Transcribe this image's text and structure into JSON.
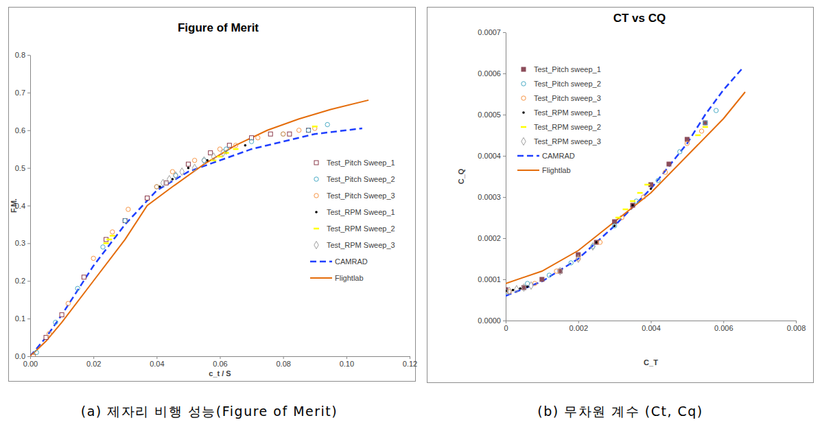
{
  "chart_data": [
    {
      "type": "scatter",
      "title": "Figure of Merit",
      "x_label": "c_t / S",
      "y_label": "F.M.",
      "caption": "(a) 제자리 비행 성능(Figure of Merit)",
      "xlim": [
        0,
        0.12
      ],
      "xticks": [
        {
          "value": 0,
          "label": "0.00"
        },
        {
          "value": 0.02,
          "label": "0.02"
        },
        {
          "value": 0.04,
          "label": "0.04"
        },
        {
          "value": 0.06,
          "label": "0.06"
        },
        {
          "value": 0.08,
          "label": "0.08"
        },
        {
          "value": 0.1,
          "label": "0.10"
        },
        {
          "value": 0.12,
          "label": "0.12"
        }
      ],
      "ylim": [
        0,
        0.8
      ],
      "yticks": [
        {
          "value": 0,
          "label": "0.0"
        },
        {
          "value": 0.1,
          "label": "0.1"
        },
        {
          "value": 0.2,
          "label": "0.2"
        },
        {
          "value": 0.3,
          "label": "0.3"
        },
        {
          "value": 0.4,
          "label": "0.4"
        },
        {
          "value": 0.5,
          "label": "0.5"
        },
        {
          "value": 0.6,
          "label": "0.6"
        },
        {
          "value": 0.7,
          "label": "0.7"
        },
        {
          "value": 0.8,
          "label": "0.8"
        }
      ],
      "grid": false,
      "legend": "right",
      "series": [
        {
          "name": "Test_Pitch Sweep_1",
          "type": "scatter",
          "marker": "square-open",
          "color": "#8b3a4a",
          "x": [
            0.001,
            0.005,
            0.01,
            0.017,
            0.024,
            0.03,
            0.037,
            0.043,
            0.05,
            0.057,
            0.063,
            0.07,
            0.076,
            0.082,
            0.088
          ],
          "values": [
            0.0,
            0.05,
            0.11,
            0.21,
            0.31,
            0.36,
            0.42,
            0.46,
            0.51,
            0.54,
            0.56,
            0.58,
            0.59,
            0.59,
            0.6
          ]
        },
        {
          "name": "Test_Pitch Sweep_2",
          "type": "scatter",
          "marker": "circle-open",
          "color": "#4bacc6",
          "x": [
            0.002,
            0.008,
            0.015,
            0.023,
            0.03,
            0.04,
            0.046,
            0.055,
            0.062,
            0.07,
            0.08,
            0.088,
            0.094
          ],
          "values": [
            0.01,
            0.09,
            0.18,
            0.29,
            0.36,
            0.45,
            0.48,
            0.52,
            0.55,
            0.57,
            0.59,
            0.6,
            0.615
          ]
        },
        {
          "name": "Test_Pitch Sweep_3",
          "type": "scatter",
          "marker": "circle-open",
          "color": "#f79646",
          "x": [
            0.001,
            0.006,
            0.012,
            0.02,
            0.026,
            0.031,
            0.04,
            0.045,
            0.052,
            0.06,
            0.065,
            0.072,
            0.08,
            0.085,
            0.09
          ],
          "values": [
            0.0,
            0.06,
            0.14,
            0.26,
            0.33,
            0.39,
            0.45,
            0.49,
            0.52,
            0.55,
            0.56,
            0.58,
            0.59,
            0.6,
            0.605
          ]
        },
        {
          "name": "Test_RPM Sweep_1",
          "type": "scatter",
          "marker": "dot",
          "color": "#000000",
          "x": [
            0.041,
            0.045,
            0.05,
            0.056,
            0.062,
            0.068
          ],
          "values": [
            0.45,
            0.47,
            0.5,
            0.52,
            0.54,
            0.56
          ]
        },
        {
          "name": "Test_RPM Sweep_2",
          "type": "scatter",
          "marker": "dash",
          "color": "#ffff00",
          "x": [
            0.024,
            0.025,
            0.026,
            0.058,
            0.06,
            0.062,
            0.065,
            0.09
          ],
          "values": [
            0.3,
            0.31,
            0.32,
            0.52,
            0.53,
            0.54,
            0.55,
            0.61
          ]
        },
        {
          "name": "Test_RPM Sweep_3",
          "type": "scatter",
          "marker": "diamond-open",
          "color": "#a0a0a0",
          "x": [
            0.042,
            0.044,
            0.046,
            0.048,
            0.052,
            0.055,
            0.058,
            0.061
          ],
          "values": [
            0.46,
            0.47,
            0.48,
            0.49,
            0.5,
            0.52,
            0.53,
            0.54
          ]
        },
        {
          "name": "CAMRAD",
          "type": "line",
          "line_style": "dashed",
          "color": "#1f3fff",
          "x": [
            0,
            0.005,
            0.01,
            0.02,
            0.03,
            0.04,
            0.05,
            0.06,
            0.07,
            0.08,
            0.09,
            0.1,
            0.105
          ],
          "values": [
            0,
            0.05,
            0.11,
            0.24,
            0.35,
            0.44,
            0.49,
            0.52,
            0.55,
            0.57,
            0.59,
            0.6,
            0.605
          ]
        },
        {
          "name": "Flightlab",
          "type": "line",
          "line_style": "solid",
          "color": "#e46c0a",
          "x": [
            0,
            0.005,
            0.01,
            0.02,
            0.03,
            0.037,
            0.045,
            0.055,
            0.065,
            0.075,
            0.085,
            0.095,
            0.107
          ],
          "values": [
            0,
            0.04,
            0.09,
            0.2,
            0.31,
            0.4,
            0.45,
            0.51,
            0.56,
            0.6,
            0.63,
            0.655,
            0.68
          ]
        }
      ]
    },
    {
      "type": "scatter",
      "title": "CT vs CQ",
      "x_label": "C_T",
      "y_label": "C_Q",
      "caption": "(b) 무차원 계수 (Ct, Cq)",
      "xlim": [
        0,
        0.008
      ],
      "xticks": [
        0,
        0.002,
        0.004,
        0.006,
        0.008
      ],
      "ylim": [
        0,
        0.0007
      ],
      "yticks": [
        {
          "value": 0,
          "label": "0.0000"
        },
        {
          "value": 0.0001,
          "label": "0.0001"
        },
        {
          "value": 0.0002,
          "label": "0.0002"
        },
        {
          "value": 0.0003,
          "label": "0.0003"
        },
        {
          "value": 0.0004,
          "label": "0.0004"
        },
        {
          "value": 0.0005,
          "label": "0.0005"
        },
        {
          "value": 0.0006,
          "label": "0.0006"
        },
        {
          "value": 0.0007,
          "label": "0.0007"
        }
      ],
      "grid": false,
      "legend": "top-left",
      "series": [
        {
          "name": "Test_Pitch sweep_1",
          "type": "scatter",
          "marker": "square",
          "color": "#8b4d5a",
          "x": [
            0,
            0.0005,
            0.001,
            0.0015,
            0.002,
            0.0025,
            0.003,
            0.0035,
            0.004,
            0.0045,
            0.005,
            0.0055
          ],
          "values": [
            7.5e-05,
            8e-05,
            0.0001,
            0.00012,
            0.00016,
            0.00019,
            0.00024,
            0.00028,
            0.00033,
            0.00038,
            0.00044,
            0.00048
          ]
        },
        {
          "name": "Test_Pitch sweep_2",
          "type": "scatter",
          "marker": "circle-open",
          "color": "#4bacc6",
          "x": [
            0,
            0.0006,
            0.0012,
            0.0018,
            0.0024,
            0.003,
            0.0036,
            0.0042,
            0.0048,
            0.0055,
            0.0058
          ],
          "values": [
            7e-05,
            9e-05,
            0.00011,
            0.00014,
            0.00018,
            0.00023,
            0.00029,
            0.00034,
            0.00041,
            0.00048,
            0.00051
          ]
        },
        {
          "name": "Test_Pitch sweep_3",
          "type": "scatter",
          "marker": "circle-open",
          "color": "#f79646",
          "x": [
            0.0001,
            0.0008,
            0.0014,
            0.002,
            0.0026,
            0.0032,
            0.0038,
            0.0044,
            0.005,
            0.0054
          ],
          "values": [
            7e-05,
            9e-05,
            0.00012,
            0.00015,
            0.00019,
            0.00025,
            0.0003,
            0.00036,
            0.00043,
            0.00046
          ]
        },
        {
          "name": "Test_RPM sweep_1",
          "type": "scatter",
          "marker": "dot",
          "color": "#000000",
          "x": [
            0,
            0.0002,
            0.0004,
            0.0006,
            0.0025,
            0.003,
            0.0035,
            0.004
          ],
          "values": [
            7.2e-05,
            7.4e-05,
            7.8e-05,
            8.2e-05,
            0.00019,
            0.00023,
            0.00028,
            0.00032
          ]
        },
        {
          "name": "Test_RPM sweep_2",
          "type": "scatter",
          "marker": "dash",
          "color": "#ffff00",
          "x": [
            0.0031,
            0.0033,
            0.0035,
            0.0037,
            0.0039,
            0.0053,
            0.0055
          ],
          "values": [
            0.00025,
            0.00027,
            0.00029,
            0.00031,
            0.00033,
            0.00045,
            0.00047
          ]
        },
        {
          "name": "Test_RPM sweep_3",
          "type": "scatter",
          "marker": "diamond-open",
          "color": "#a0a0a0",
          "x": [
            0.0001,
            0.0003,
            0.0005,
            0.0007,
            0.0015,
            0.002,
            0.0024
          ],
          "values": [
            7.2e-05,
            7.6e-05,
            8e-05,
            8.5e-05,
            0.00012,
            0.00015,
            0.00018
          ]
        },
        {
          "name": "CAMRAD",
          "type": "line",
          "line_style": "dashed",
          "color": "#1f3fff",
          "x": [
            0,
            0.001,
            0.002,
            0.003,
            0.004,
            0.005,
            0.0055,
            0.006,
            0.0065
          ],
          "values": [
            6e-05,
            9.5e-05,
            0.00015,
            0.00023,
            0.00032,
            0.00043,
            0.0005,
            0.00056,
            0.00061
          ]
        },
        {
          "name": "Flightlab",
          "type": "line",
          "line_style": "solid",
          "color": "#e46c0a",
          "x": [
            0,
            0.001,
            0.002,
            0.003,
            0.004,
            0.005,
            0.006,
            0.0066
          ],
          "values": [
            9e-05,
            0.00012,
            0.00017,
            0.00024,
            0.00031,
            0.0004,
            0.00049,
            0.000555
          ]
        }
      ]
    }
  ]
}
